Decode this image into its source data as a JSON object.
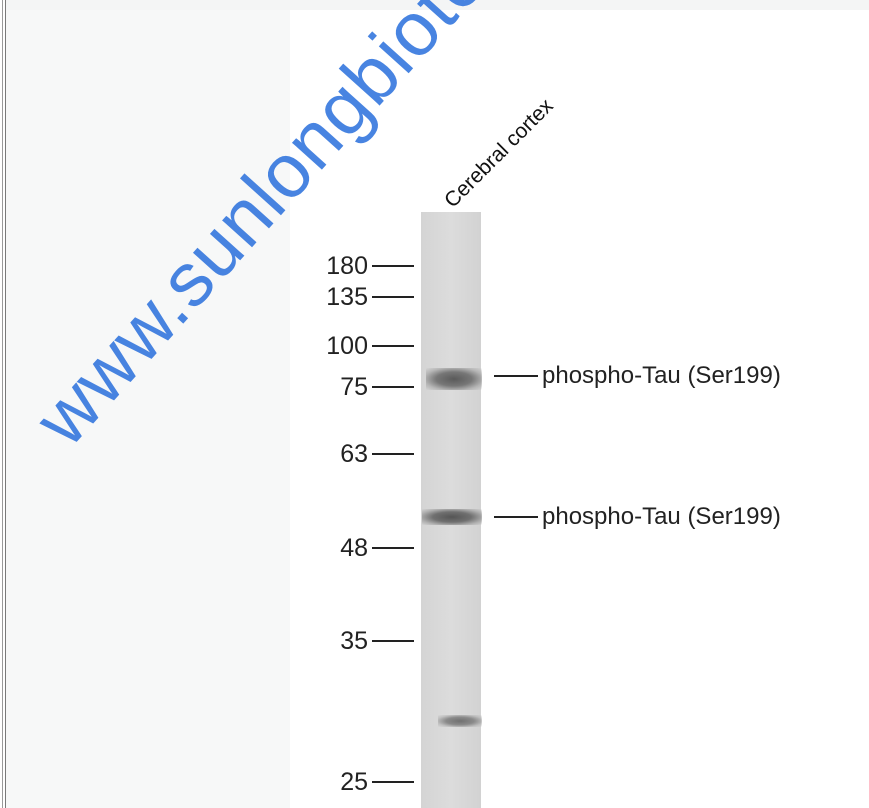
{
  "lane_label": "Cerebral cortex",
  "markers": [
    "180",
    "135",
    "100",
    "75",
    "63",
    "48",
    "35",
    "25"
  ],
  "band_annotations": [
    "phospho-Tau (Ser199)",
    "phospho-Tau (Ser199)"
  ],
  "watermark": "www.sunlongbiotech.com",
  "colors": {
    "watermark": "#286edc",
    "lane": "#d6d6d6",
    "background": "#f7f8f8"
  }
}
